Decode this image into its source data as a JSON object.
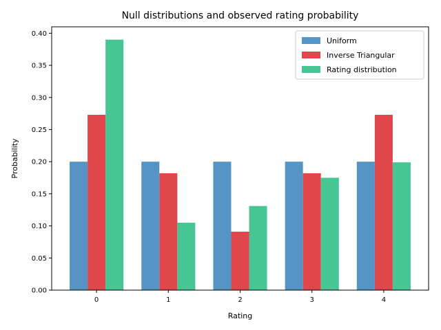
{
  "chart_data": {
    "type": "bar",
    "title": "Null distributions and observed rating probability",
    "xlabel": "Rating",
    "ylabel": "Probability",
    "categories": [
      "0",
      "1",
      "2",
      "3",
      "4"
    ],
    "ylim": [
      0,
      0.41
    ],
    "yticks": [
      0.0,
      0.05,
      0.1,
      0.15,
      0.2,
      0.25,
      0.3,
      0.35,
      0.4
    ],
    "grid": false,
    "legend_position": "top-right",
    "series": [
      {
        "name": "Uniform",
        "color": "#5594c5",
        "values": [
          0.2,
          0.2,
          0.2,
          0.2,
          0.2
        ]
      },
      {
        "name": "Inverse Triangular",
        "color": "#e0474c",
        "values": [
          0.273,
          0.182,
          0.091,
          0.182,
          0.273
        ]
      },
      {
        "name": "Rating distribution",
        "color": "#48c595",
        "values": [
          0.39,
          0.105,
          0.131,
          0.175,
          0.199
        ]
      }
    ]
  }
}
